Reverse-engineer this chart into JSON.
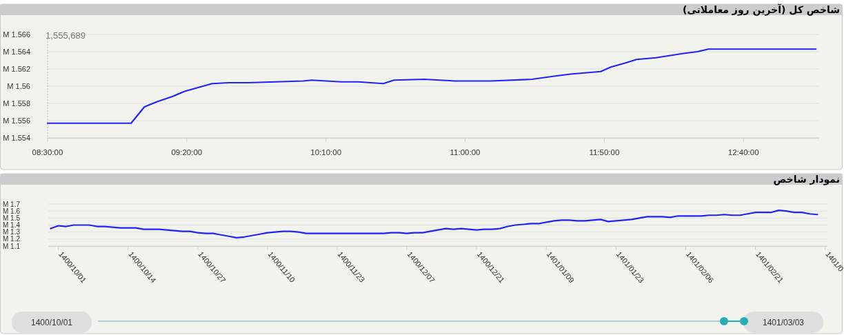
{
  "chart_data": [
    {
      "type": "line",
      "title": "شاخص کل (آخرین روز معاملاتی)",
      "x": [
        8.5,
        9.0,
        9.08,
        9.156,
        9.247,
        9.321,
        9.412,
        9.486,
        9.585,
        9.7,
        10.03,
        10.08,
        10.26,
        10.36,
        10.51,
        10.575,
        10.757,
        10.94,
        11.153,
        11.4,
        11.549,
        11.631,
        11.813,
        11.87,
        11.961,
        12.027,
        12.143,
        12.308,
        12.39,
        12.457,
        13.1
      ],
      "series": [
        {
          "color": "#2222ff",
          "values": [
            1.5557,
            1.5557,
            1.5576,
            1.5582,
            1.5588,
            1.5594,
            1.5599,
            1.5603,
            1.5604,
            1.5604,
            1.5606,
            1.5607,
            1.5605,
            1.5605,
            1.5603,
            1.5607,
            1.5608,
            1.5606,
            1.5606,
            1.5608,
            1.5612,
            1.5614,
            1.5617,
            1.5622,
            1.5627,
            1.5631,
            1.5633,
            1.5638,
            1.564,
            1.5643,
            1.5643
          ]
        }
      ],
      "xlim": [
        8.5,
        13.12
      ],
      "ylim": [
        1.554,
        1.566
      ],
      "xticks": [
        {
          "value": 8.5,
          "label": "08:30:00"
        },
        {
          "value": 9.333333,
          "label": "09:20:00"
        },
        {
          "value": 10.166667,
          "label": "10:10:00"
        },
        {
          "value": 11.0,
          "label": "11:00:00"
        },
        {
          "value": 11.833333,
          "label": "11:50:00"
        },
        {
          "value": 12.666667,
          "label": "12:40:00"
        }
      ],
      "yticks": [
        {
          "value": 1.554,
          "label": "1.554 M"
        },
        {
          "value": 1.556,
          "label": "1.556 M"
        },
        {
          "value": 1.558,
          "label": "1.558 M"
        },
        {
          "value": 1.56,
          "label": "1.56 M"
        },
        {
          "value": 1.562,
          "label": "1.562 M"
        },
        {
          "value": 1.564,
          "label": "1.564 M"
        },
        {
          "value": 1.566,
          "label": "1.566 M"
        }
      ],
      "annotations": [
        "1,555,689"
      ],
      "grid": "y",
      "marker": "none"
    },
    {
      "type": "line",
      "title": "نمودار شاخص",
      "categories": [
        null,
        "1400/10/01",
        null,
        null,
        null,
        null,
        null,
        null,
        null,
        null,
        "1400/10/14",
        null,
        null,
        null,
        null,
        null,
        null,
        null,
        null,
        "1400/10/27",
        null,
        null,
        null,
        null,
        null,
        null,
        null,
        null,
        "1400/11/10",
        null,
        null,
        null,
        null,
        null,
        null,
        null,
        null,
        "1400/11/23",
        null,
        null,
        null,
        null,
        null,
        null,
        null,
        null,
        "1400/12/07",
        null,
        null,
        null,
        null,
        null,
        null,
        null,
        null,
        "1400/12/21",
        null,
        null,
        null,
        null,
        null,
        null,
        null,
        null,
        "1401/01/09",
        null,
        null,
        null,
        null,
        null,
        null,
        null,
        null,
        "1401/01/23",
        null,
        null,
        null,
        null,
        null,
        null,
        null,
        null,
        "1401/02/06",
        null,
        null,
        null,
        null,
        null,
        null,
        null,
        null,
        "1401/02/21",
        null,
        null,
        null,
        null,
        null,
        null,
        null,
        null,
        "1401/0"
      ],
      "series": [
        {
          "color": "#2222ff",
          "values": [
            1.35,
            1.39,
            1.38,
            1.4,
            1.4,
            1.4,
            1.38,
            1.38,
            1.37,
            1.36,
            1.36,
            1.36,
            1.34,
            1.34,
            1.34,
            1.33,
            1.32,
            1.31,
            1.31,
            1.29,
            1.28,
            1.28,
            1.26,
            1.24,
            1.22,
            1.23,
            1.25,
            1.27,
            1.29,
            1.3,
            1.31,
            1.31,
            1.3,
            1.28,
            1.28,
            1.28,
            1.28,
            1.28,
            1.28,
            1.28,
            1.28,
            1.28,
            1.28,
            1.28,
            1.29,
            1.29,
            1.28,
            1.29,
            1.29,
            1.31,
            1.33,
            1.35,
            1.34,
            1.35,
            1.34,
            1.33,
            1.34,
            1.34,
            1.35,
            1.38,
            1.4,
            1.41,
            1.42,
            1.42,
            1.44,
            1.46,
            1.47,
            1.47,
            1.46,
            1.46,
            1.47,
            1.48,
            1.45,
            1.46,
            1.47,
            1.48,
            1.5,
            1.52,
            1.52,
            1.52,
            1.51,
            1.53,
            1.53,
            1.53,
            1.53,
            1.54,
            1.54,
            1.55,
            1.54,
            1.54,
            1.56,
            1.58,
            1.58,
            1.58,
            1.61,
            1.6,
            1.58,
            1.58,
            1.56,
            1.55,
            null
          ]
        }
      ],
      "ylim": [
        1.1,
        1.7
      ],
      "yticks": [
        {
          "value": 1.1,
          "label": "1.1 M"
        },
        {
          "value": 1.2,
          "label": "1.2 M"
        },
        {
          "value": 1.3,
          "label": "1.3 M"
        },
        {
          "value": 1.4,
          "label": "1.4 M"
        },
        {
          "value": 1.5,
          "label": "1.5 M"
        },
        {
          "value": 1.6,
          "label": "1.6 M"
        },
        {
          "value": 1.7,
          "label": "1.7 M"
        }
      ],
      "annotations": [
        "1400/10/01",
        "1401/03/03"
      ],
      "grid": "y",
      "marker": "none"
    }
  ]
}
